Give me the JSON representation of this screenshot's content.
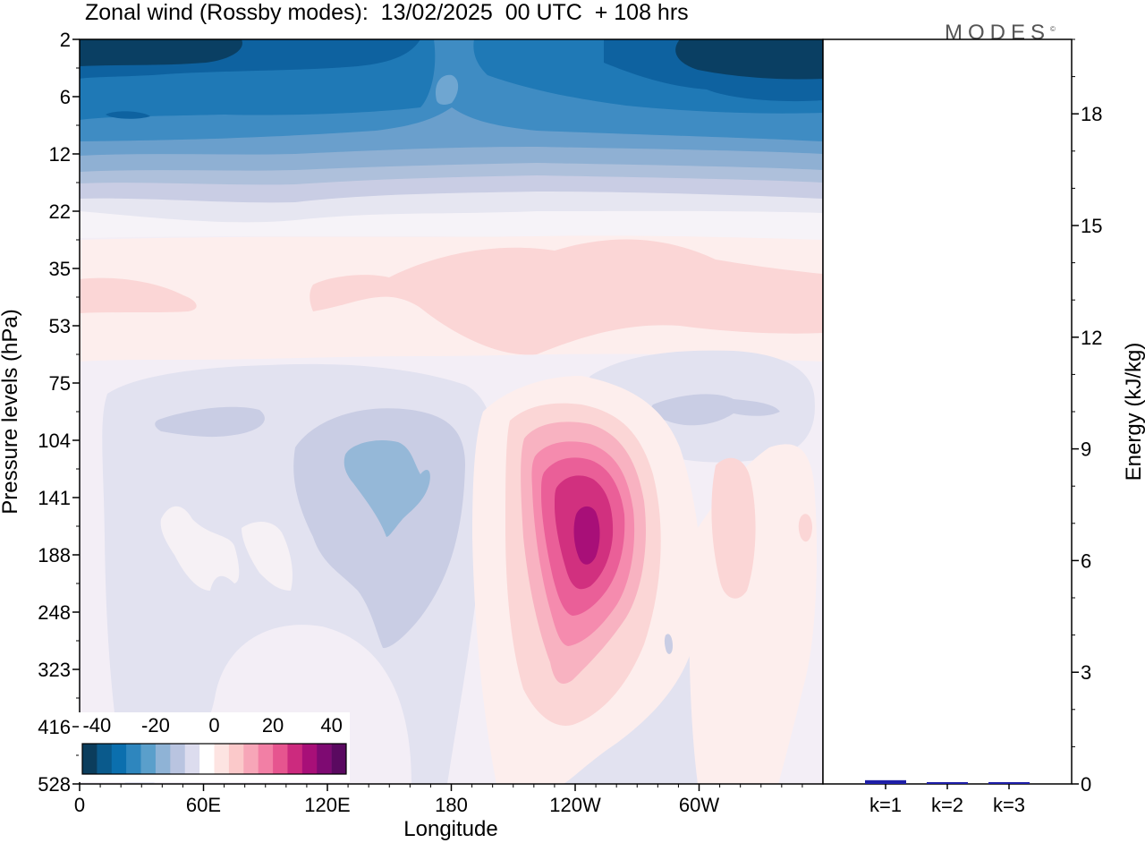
{
  "header": {
    "title": "Zonal wind (Rossby modes):  13/02/2025  00 UTC  + 108 hrs",
    "logo": "MODES",
    "logo_mark": "©"
  },
  "chart_data": [
    {
      "type": "heatmap",
      "title": "Zonal wind (Rossby modes):  13/02/2025  00 UTC  + 108 hrs",
      "xlabel": "Longitude",
      "ylabel": "Pressure levels (hPa)",
      "x_ticks": [
        "0",
        "60E",
        "120E",
        "180",
        "120W",
        "60W"
      ],
      "y_ticks": [
        "2",
        "6",
        "12",
        "22",
        "35",
        "53",
        "75",
        "104",
        "141",
        "188",
        "248",
        "323",
        "416",
        "528"
      ],
      "y_scale": "log (pressure, decreasing upward)",
      "colorbar": {
        "ticks": [
          "-40",
          "-20",
          "0",
          "20",
          "40"
        ],
        "range": [
          -45,
          45
        ],
        "step": 5,
        "colors": [
          "#0b3d5c",
          "#0a5a8c",
          "#0b6fae",
          "#2e86be",
          "#5a9fcb",
          "#8fb3d6",
          "#b9c4e0",
          "#dcdcee",
          "#ffffff",
          "#fde4e2",
          "#fbc9ca",
          "#f7a6b8",
          "#f27fa5",
          "#e6558f",
          "#cc2a7e",
          "#a80f78",
          "#7e0a72",
          "#5a0960"
        ]
      },
      "features": [
        {
          "name": "easterly jet band",
          "pressure_hPa": [
            2,
            15
          ],
          "value_min": -45,
          "value_max": -15
        },
        {
          "name": "westerly maximum",
          "longitude": "125W",
          "pressure_hPa": 150,
          "value_max": 40
        },
        {
          "name": "easterly minimum",
          "longitude": "150E",
          "pressure_hPa": 120,
          "value_min": -15
        }
      ]
    },
    {
      "type": "bar",
      "ylabel": "Energy (kJ/kg)",
      "ylim": [
        0,
        20
      ],
      "y_ticks": [
        "0",
        "3",
        "6",
        "9",
        "12",
        "15",
        "18"
      ],
      "categories": [
        "k=1",
        "k=2",
        "k=3"
      ],
      "values": [
        0.1,
        0.03,
        0.02
      ],
      "bar_color": "#1e1ea8"
    }
  ]
}
